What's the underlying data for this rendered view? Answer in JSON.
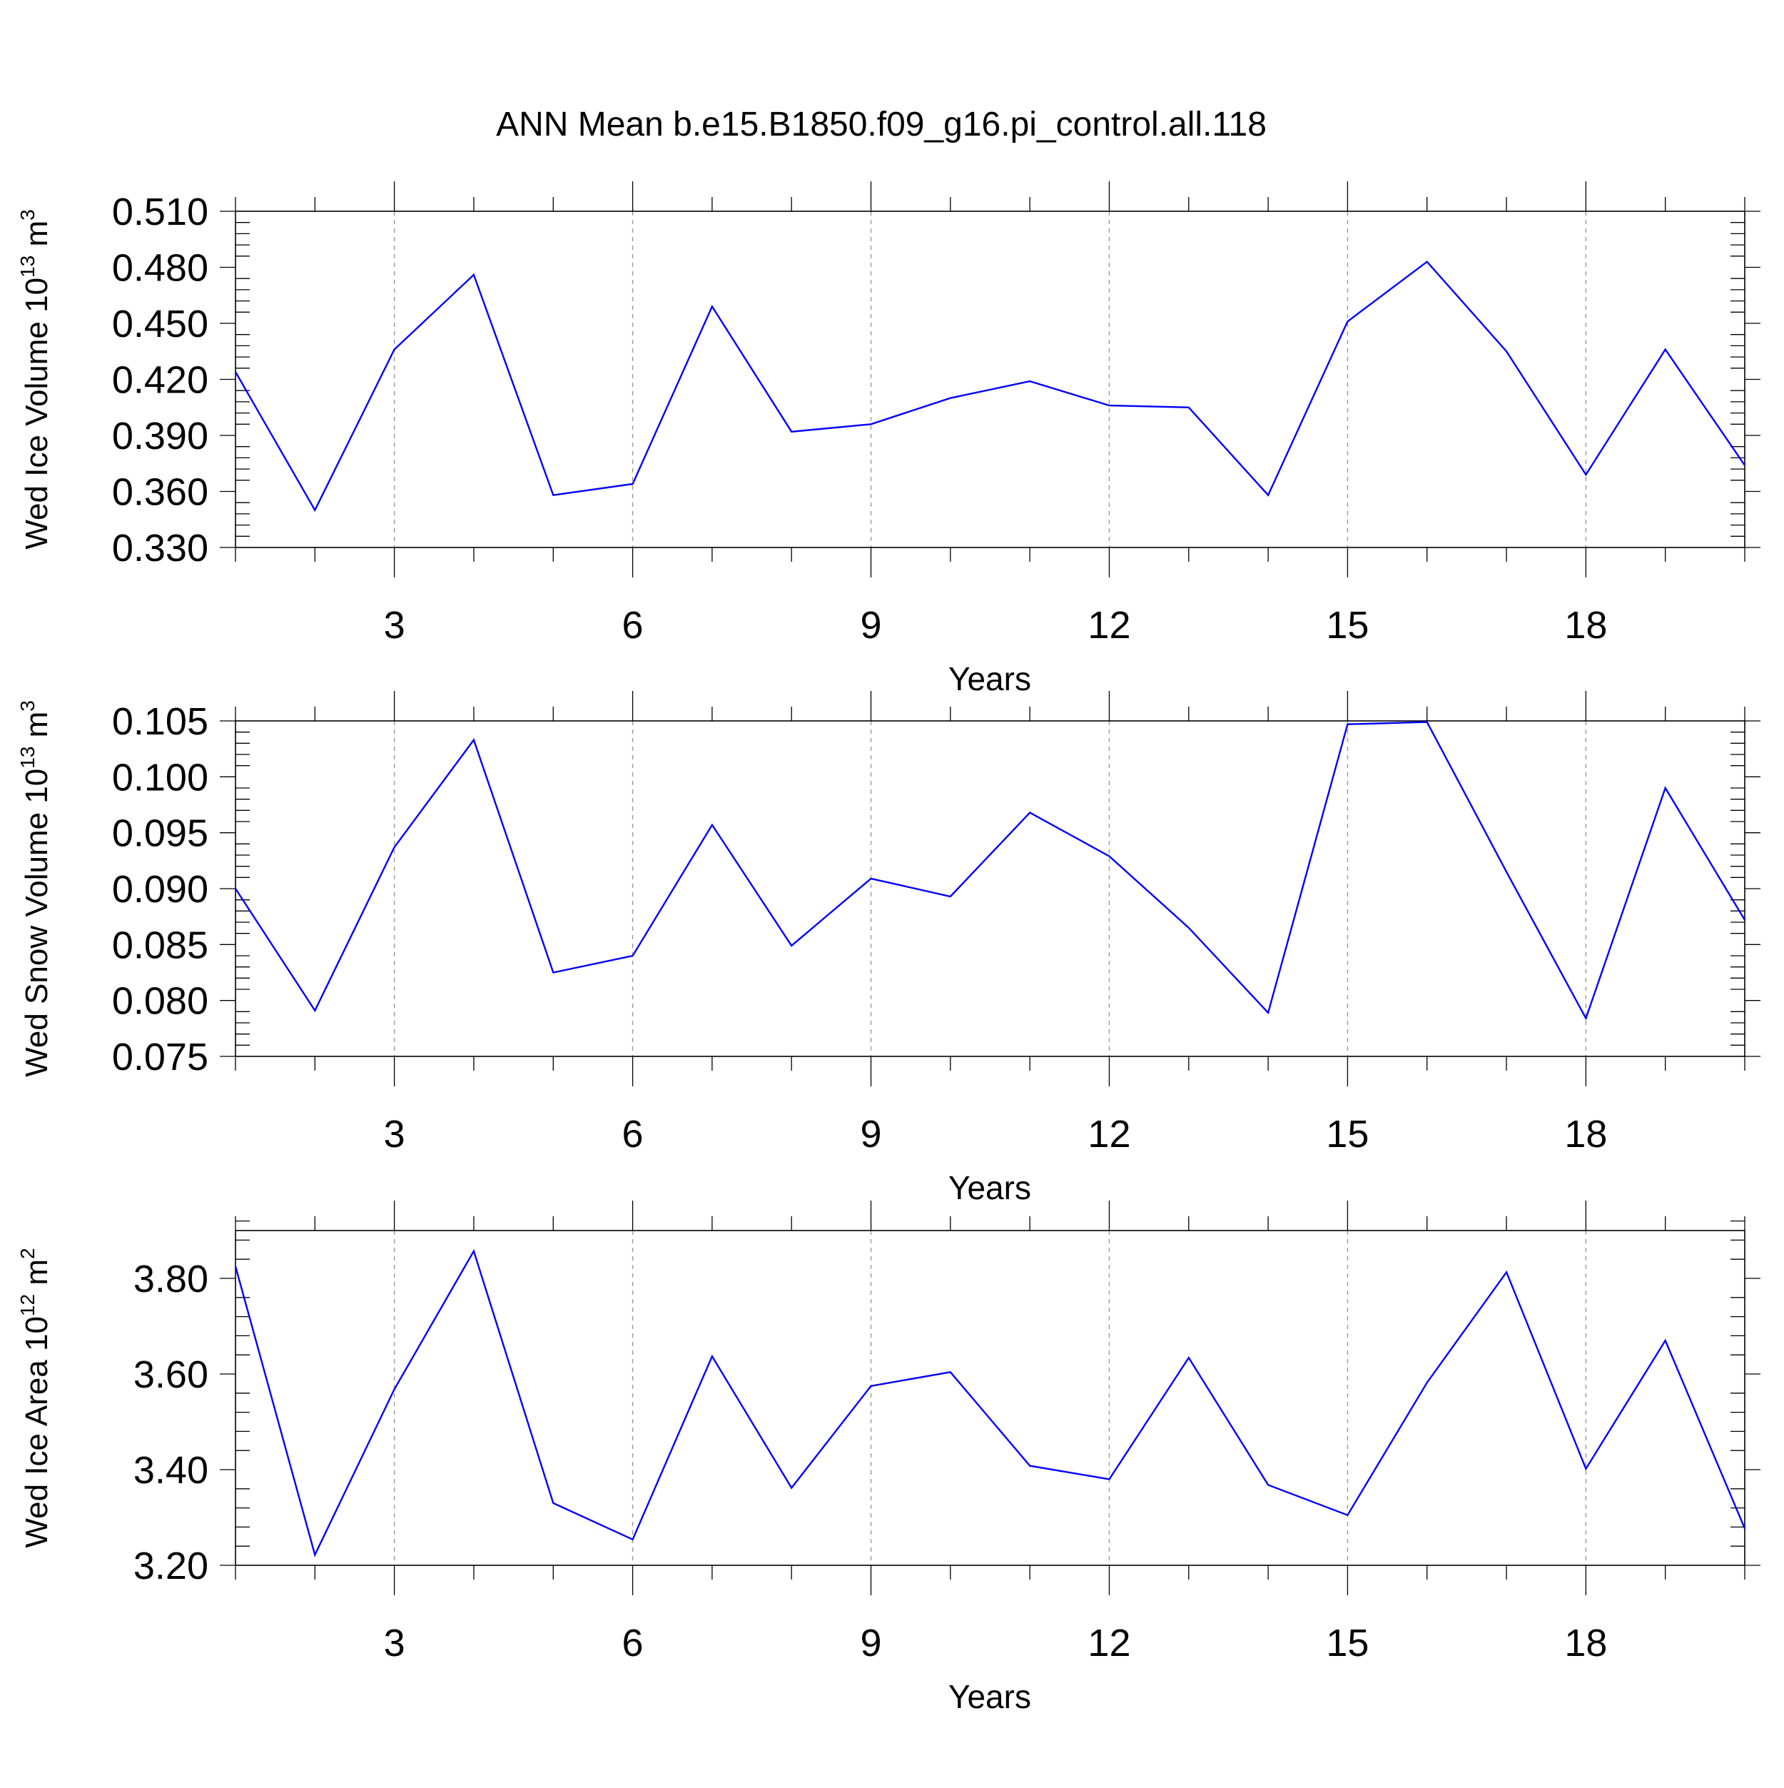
{
  "title": "ANN Mean b.e15.B1850.f09_g16.pi_control.all.118",
  "colors": {
    "series": "#0000ff",
    "axis": "#000000",
    "grid": "#999999"
  },
  "chart_data": [
    {
      "type": "line",
      "title": "",
      "xlabel": "Years",
      "ylabel": "Wed Ice Volume 10",
      "ylabel_sup": "13",
      "ylabel_unit": " m",
      "ylabel_unit_sup": "3",
      "xlim": [
        1,
        20
      ],
      "ylim": [
        0.33,
        0.51
      ],
      "xticks": [
        3,
        6,
        9,
        12,
        15,
        18
      ],
      "xtick_labels": [
        "3",
        "6",
        "9",
        "12",
        "15",
        "18"
      ],
      "yticks": [
        0.33,
        0.36,
        0.39,
        0.42,
        0.45,
        0.48,
        0.51
      ],
      "ytick_labels": [
        "0.330",
        "0.360",
        "0.390",
        "0.420",
        "0.450",
        "0.480",
        "0.510"
      ],
      "grid": "vertical dashed at major x ticks",
      "x": [
        1,
        2,
        3,
        4,
        5,
        6,
        7,
        8,
        9,
        10,
        11,
        12,
        13,
        14,
        15,
        16,
        17,
        18,
        19,
        20
      ],
      "series": [
        {
          "values": [
            0.424,
            0.35,
            0.436,
            0.476,
            0.358,
            0.364,
            0.459,
            0.392,
            0.396,
            0.41,
            0.419,
            0.406,
            0.405,
            0.358,
            0.451,
            0.483,
            0.435,
            0.369,
            0.436,
            0.374
          ]
        }
      ]
    },
    {
      "type": "line",
      "title": "",
      "xlabel": "Years",
      "ylabel": "Wed Snow Volume 10",
      "ylabel_sup": "13",
      "ylabel_unit": " m",
      "ylabel_unit_sup": "3",
      "xlim": [
        1,
        20
      ],
      "ylim": [
        0.075,
        0.105
      ],
      "xticks": [
        3,
        6,
        9,
        12,
        15,
        18
      ],
      "xtick_labels": [
        "3",
        "6",
        "9",
        "12",
        "15",
        "18"
      ],
      "yticks": [
        0.075,
        0.08,
        0.085,
        0.09,
        0.095,
        0.1,
        0.105
      ],
      "ytick_labels": [
        "0.075",
        "0.080",
        "0.085",
        "0.090",
        "0.095",
        "0.100",
        "0.105"
      ],
      "grid": "vertical dashed at major x ticks",
      "x": [
        1,
        2,
        3,
        4,
        5,
        6,
        7,
        8,
        9,
        10,
        11,
        12,
        13,
        14,
        15,
        16,
        17,
        18,
        19,
        20
      ],
      "series": [
        {
          "values": [
            0.09,
            0.0791,
            0.0937,
            0.1033,
            0.0825,
            0.084,
            0.0957,
            0.0849,
            0.0909,
            0.0893,
            0.0968,
            0.0929,
            0.0865,
            0.0789,
            0.1047,
            0.1049,
            0.0915,
            0.0784,
            0.099,
            0.0872
          ]
        }
      ]
    },
    {
      "type": "line",
      "title": "",
      "xlabel": "Years",
      "ylabel": "Wed Ice Area 10",
      "ylabel_sup": "12",
      "ylabel_unit": " m",
      "ylabel_unit_sup": "2",
      "xlim": [
        1,
        20
      ],
      "ylim": [
        3.2,
        3.9
      ],
      "xticks": [
        3,
        6,
        9,
        12,
        15,
        18
      ],
      "xtick_labels": [
        "3",
        "6",
        "9",
        "12",
        "15",
        "18"
      ],
      "yticks": [
        3.2,
        3.4,
        3.6,
        3.8
      ],
      "ytick_labels": [
        "3.20",
        "3.40",
        "3.60",
        "3.80"
      ],
      "grid": "vertical dashed at major x ticks",
      "x": [
        1,
        2,
        3,
        4,
        5,
        6,
        7,
        8,
        9,
        10,
        11,
        12,
        13,
        14,
        15,
        16,
        17,
        18,
        19,
        20
      ],
      "series": [
        {
          "values": [
            3.825,
            3.222,
            3.568,
            3.857,
            3.33,
            3.254,
            3.637,
            3.362,
            3.575,
            3.604,
            3.408,
            3.38,
            3.634,
            3.368,
            3.305,
            3.582,
            3.813,
            3.402,
            3.67,
            3.277
          ]
        }
      ]
    }
  ]
}
